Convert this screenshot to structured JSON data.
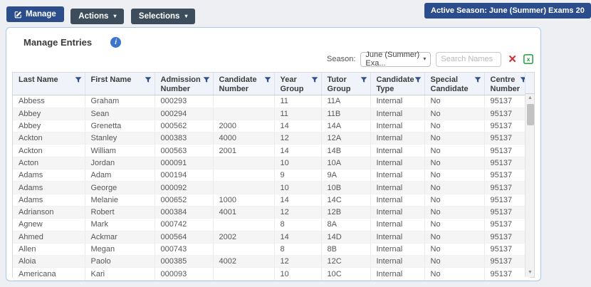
{
  "toolbar": {
    "manage_label": "Manage",
    "actions_label": "Actions",
    "selections_label": "Selections",
    "active_season_badge": "Active Season: June (Summer) Exams 20"
  },
  "panel": {
    "title": "Manage Entries",
    "info_icon_glyph": "i",
    "season_label": "Season:",
    "season_selected_value": "June (Summer) Exa...",
    "search_placeholder": "Search Names"
  },
  "icons": {
    "caret_down": "▾",
    "clear_search": "✕",
    "scroll_up": "▲",
    "scroll_down": "▼"
  },
  "colors": {
    "primary_blue": "#2c4d8c",
    "dark_slate": "#3d4d5c",
    "card_border": "#a9c8ec",
    "header_bg": "#f0f4fa",
    "filter_icon": "#34508c",
    "clear_red": "#d02f2f",
    "excel_green": "#1e9e3e"
  },
  "table": {
    "columns": [
      "Last Name",
      "First Name",
      "Admission Number",
      "Candidate Number",
      "Year Group",
      "Tutor Group",
      "Candidate Type",
      "Special Candidate",
      "Centre Number"
    ],
    "rows": [
      [
        "Abbess",
        "Graham",
        "000293",
        "",
        "11",
        "11A",
        "Internal",
        "No",
        "95137"
      ],
      [
        "Abbey",
        "Sean",
        "000294",
        "",
        "11",
        "11B",
        "Internal",
        "No",
        "95137"
      ],
      [
        "Abbey",
        "Grenetta",
        "000562",
        "2000",
        "14",
        "14A",
        "Internal",
        "No",
        "95137"
      ],
      [
        "Ackton",
        "Stanley",
        "000383",
        "4000",
        "12",
        "12A",
        "Internal",
        "No",
        "95137"
      ],
      [
        "Ackton",
        "William",
        "000563",
        "2001",
        "14",
        "14B",
        "Internal",
        "No",
        "95137"
      ],
      [
        "Acton",
        "Jordan",
        "000091",
        "",
        "10",
        "10A",
        "Internal",
        "No",
        "95137"
      ],
      [
        "Adams",
        "Adam",
        "000194",
        "",
        "9",
        "9A",
        "Internal",
        "No",
        "95137"
      ],
      [
        "Adams",
        "George",
        "000092",
        "",
        "10",
        "10B",
        "Internal",
        "No",
        "95137"
      ],
      [
        "Adams",
        "Melanie",
        "000652",
        "1000",
        "14",
        "14C",
        "Internal",
        "No",
        "95137"
      ],
      [
        "Adrianson",
        "Robert",
        "000384",
        "4001",
        "12",
        "12B",
        "Internal",
        "No",
        "95137"
      ],
      [
        "Agnew",
        "Mark",
        "000742",
        "",
        "8",
        "8A",
        "Internal",
        "No",
        "95137"
      ],
      [
        "Ahmed",
        "Ackmar",
        "000564",
        "2002",
        "14",
        "14D",
        "Internal",
        "No",
        "95137"
      ],
      [
        "Allen",
        "Megan",
        "000743",
        "",
        "8",
        "8B",
        "Internal",
        "No",
        "95137"
      ],
      [
        "Aloia",
        "Paolo",
        "000385",
        "4002",
        "12",
        "12C",
        "Internal",
        "No",
        "95137"
      ],
      [
        "Americana",
        "Kari",
        "000093",
        "",
        "10",
        "10C",
        "Internal",
        "No",
        "95137"
      ]
    ]
  }
}
